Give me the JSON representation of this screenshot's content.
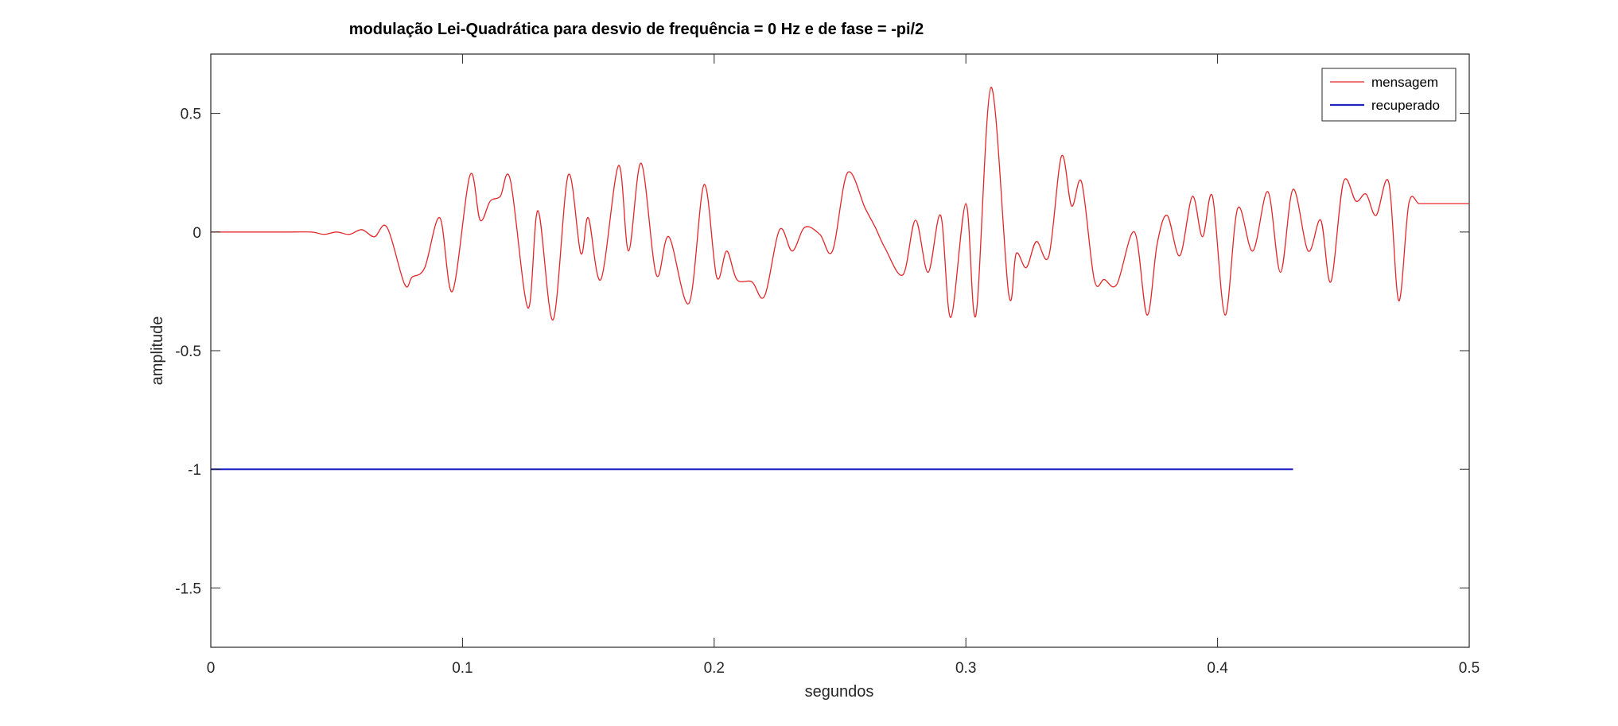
{
  "chart_data": {
    "type": "line",
    "title": "modulação Lei-Quadrática para desvio de frequência = 0 Hz e de fase = -pi/2",
    "xlabel": "segundos",
    "ylabel": "amplitude",
    "xlim": [
      0,
      0.5
    ],
    "ylim": [
      -1.75,
      0.75
    ],
    "xticks": [
      0,
      0.1,
      0.2,
      0.3,
      0.4,
      0.5
    ],
    "xtick_labels": [
      "0",
      "0.1",
      "0.2",
      "0.3",
      "0.4",
      "0.5"
    ],
    "yticks": [
      0.5,
      0,
      -0.5,
      -1,
      -1.5
    ],
    "ytick_labels": [
      "0.5",
      "0",
      "-0.5",
      "-1",
      "-1.5"
    ],
    "grid": false,
    "legend_position": "top-right",
    "series": [
      {
        "name": "mensagem",
        "color": "#e3262a",
        "x": [
          0,
          0.01,
          0.02,
          0.03,
          0.04,
          0.045,
          0.05,
          0.055,
          0.06,
          0.065,
          0.07,
          0.077,
          0.08,
          0.085,
          0.091,
          0.096,
          0.103,
          0.107,
          0.111,
          0.115,
          0.119,
          0.126,
          0.13,
          0.136,
          0.142,
          0.147,
          0.15,
          0.155,
          0.162,
          0.166,
          0.171,
          0.177,
          0.182,
          0.19,
          0.196,
          0.201,
          0.205,
          0.209,
          0.215,
          0.22,
          0.226,
          0.231,
          0.236,
          0.242,
          0.247,
          0.253,
          0.26,
          0.264,
          0.268,
          0.275,
          0.28,
          0.285,
          0.29,
          0.294,
          0.3,
          0.304,
          0.31,
          0.317,
          0.32,
          0.324,
          0.328,
          0.333,
          0.338,
          0.342,
          0.346,
          0.351,
          0.355,
          0.36,
          0.367,
          0.372,
          0.376,
          0.38,
          0.385,
          0.39,
          0.394,
          0.398,
          0.403,
          0.408,
          0.414,
          0.42,
          0.425,
          0.43,
          0.436,
          0.441,
          0.445,
          0.45,
          0.455,
          0.459,
          0.463,
          0.468,
          0.472,
          0.476,
          0.48,
          0.484,
          0.488,
          0.492,
          0.496,
          0.5
        ],
        "y": [
          0,
          0,
          0,
          0,
          0,
          -0.01,
          0,
          -0.01,
          0.01,
          -0.02,
          0.02,
          -0.22,
          -0.19,
          -0.15,
          0.06,
          -0.25,
          0.24,
          0.05,
          0.13,
          0.15,
          0.22,
          -0.32,
          0.09,
          -0.37,
          0.24,
          -0.09,
          0.06,
          -0.2,
          0.28,
          -0.08,
          0.29,
          -0.18,
          -0.02,
          -0.3,
          0.2,
          -0.19,
          -0.08,
          -0.2,
          -0.21,
          -0.27,
          0.01,
          -0.08,
          0.02,
          -0.01,
          -0.08,
          0.25,
          0.1,
          0.02,
          -0.07,
          -0.18,
          0.05,
          -0.17,
          0.07,
          -0.36,
          0.12,
          -0.35,
          0.61,
          -0.26,
          -0.09,
          -0.15,
          -0.04,
          -0.1,
          0.32,
          0.11,
          0.21,
          -0.2,
          -0.2,
          -0.22,
          0,
          -0.35,
          -0.05,
          0.07,
          -0.1,
          0.15,
          -0.02,
          0.15,
          -0.35,
          0.1,
          -0.08,
          0.17,
          -0.17,
          0.18,
          -0.08,
          0.05,
          -0.21,
          0.21,
          0.13,
          0.16,
          0.07,
          0.21,
          -0.29,
          0.12,
          0.12,
          0.12,
          0.12,
          0.12,
          0.12,
          0.12
        ]
      },
      {
        "name": "recuperado",
        "color": "#2121c4",
        "x": [
          0,
          0.43
        ],
        "y": [
          -1,
          -1
        ]
      }
    ]
  }
}
